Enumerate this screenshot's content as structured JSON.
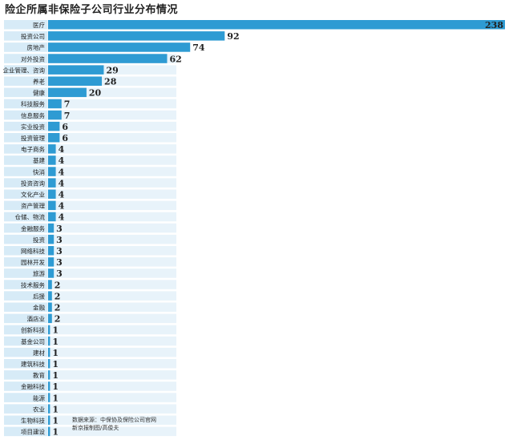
{
  "chart_data": {
    "type": "bar",
    "orientation": "horizontal",
    "title": "险企所属非保险子公司行业分布情况",
    "categories": [
      "医疗",
      "投资公司",
      "房地产",
      "对外投资",
      "企业管理、咨询",
      "养老",
      "健康",
      "科技服务",
      "信息服务",
      "实业投资",
      "投资管理",
      "电子商务",
      "基建",
      "快消",
      "投资咨询",
      "文化产业",
      "资产管理",
      "仓储、物流",
      "金融服务",
      "投资",
      "网络科技",
      "园林开发",
      "旅游",
      "技术服务",
      "后援",
      "金融",
      "酒店业",
      "创新科技",
      "基金公司",
      "建材",
      "建筑科技",
      "教育",
      "金融科技",
      "能源",
      "农业",
      "生物科技",
      "项目建设"
    ],
    "values": [
      238,
      92,
      74,
      62,
      29,
      28,
      20,
      7,
      7,
      6,
      6,
      4,
      4,
      4,
      4,
      4,
      4,
      4,
      3,
      3,
      3,
      3,
      3,
      2,
      2,
      2,
      2,
      1,
      1,
      1,
      1,
      1,
      1,
      1,
      1,
      1,
      1
    ],
    "xlim": [
      0,
      238
    ],
    "grid": false,
    "colors": {
      "bar": "#2e9bd3",
      "label_bg": "#d7ebf7",
      "band": "#e8f3fa"
    },
    "source_lines": [
      "数据来源：中保协及保险公司官网",
      "新京报制图/高俊夫"
    ]
  }
}
